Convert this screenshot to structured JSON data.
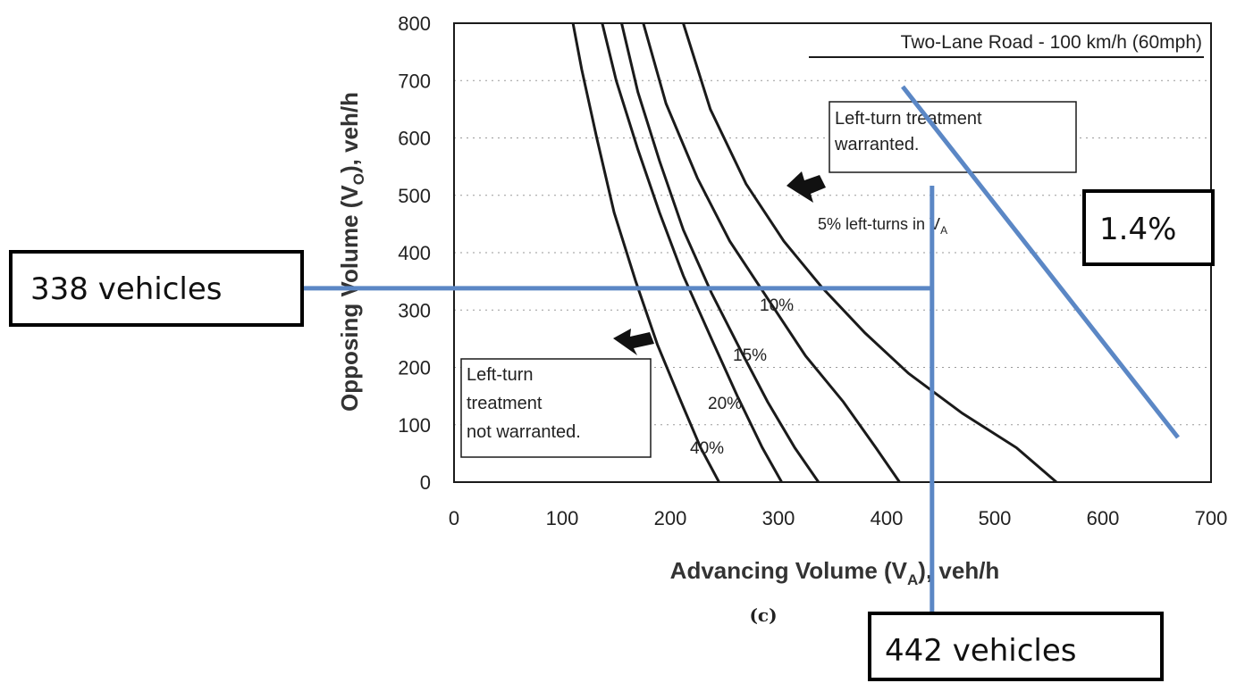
{
  "chart_data": {
    "type": "line",
    "title": "Two-Lane Road - 100 km/h (60mph)",
    "xlabel_main": "Advancing Volume (V",
    "xlabel_sub": "A",
    "xlabel_tail": "), veh/h",
    "ylabel_main": "Opposing Volume (V",
    "ylabel_sub": "O",
    "ylabel_tail": "), veh/h",
    "panel_label": "(c)",
    "xlim": [
      0,
      700
    ],
    "ylim": [
      0,
      800
    ],
    "xticks": [
      0,
      100,
      200,
      300,
      400,
      500,
      600,
      700
    ],
    "yticks": [
      0,
      100,
      200,
      300,
      400,
      500,
      600,
      700,
      800
    ],
    "grid": "horizontal",
    "series": [
      {
        "name": "5% left-turns in V",
        "points": [
          [
            557,
            0
          ],
          [
            520,
            60
          ],
          [
            470,
            120
          ],
          [
            420,
            190
          ],
          [
            380,
            260
          ],
          [
            340,
            340
          ],
          [
            305,
            420
          ],
          [
            270,
            520
          ],
          [
            237,
            650
          ],
          [
            212,
            800
          ]
        ]
      },
      {
        "name": "10%",
        "points": [
          [
            412,
            0
          ],
          [
            390,
            60
          ],
          [
            360,
            140
          ],
          [
            325,
            220
          ],
          [
            290,
            320
          ],
          [
            255,
            420
          ],
          [
            225,
            530
          ],
          [
            196,
            660
          ],
          [
            175,
            800
          ]
        ]
      },
      {
        "name": "15%",
        "points": [
          [
            337,
            0
          ],
          [
            315,
            60
          ],
          [
            290,
            140
          ],
          [
            265,
            230
          ],
          [
            238,
            330
          ],
          [
            212,
            440
          ],
          [
            190,
            560
          ],
          [
            170,
            680
          ],
          [
            155,
            800
          ]
        ]
      },
      {
        "name": "20%",
        "points": [
          [
            303,
            0
          ],
          [
            285,
            60
          ],
          [
            262,
            150
          ],
          [
            238,
            250
          ],
          [
            212,
            360
          ],
          [
            190,
            470
          ],
          [
            170,
            580
          ],
          [
            150,
            700
          ],
          [
            137,
            800
          ]
        ]
      },
      {
        "name": "40%",
        "points": [
          [
            245,
            0
          ],
          [
            228,
            60
          ],
          [
            210,
            140
          ],
          [
            188,
            240
          ],
          [
            168,
            350
          ],
          [
            148,
            470
          ],
          [
            132,
            600
          ],
          [
            118,
            720
          ],
          [
            110,
            800
          ]
        ]
      }
    ],
    "annotations": {
      "warranted_line1": "Left-turn treatment",
      "warranted_line2": "warranted.",
      "not_warranted_line1": "Left-turn",
      "not_warranted_line2": "treatment",
      "not_warranted_line3": "not warranted.",
      "label_5_main": "5% left-turns in V",
      "label_5_sub": "A",
      "label_10": "10%",
      "label_15": "15%",
      "label_20": "20%",
      "label_40": "40%"
    },
    "overlay": {
      "color": "#5b87c5",
      "horizontal_value": 338,
      "vertical_value": 442,
      "callout_left": "338 vehicles",
      "callout_bottom": "442 vehicles",
      "callout_right": "1.4%"
    }
  }
}
